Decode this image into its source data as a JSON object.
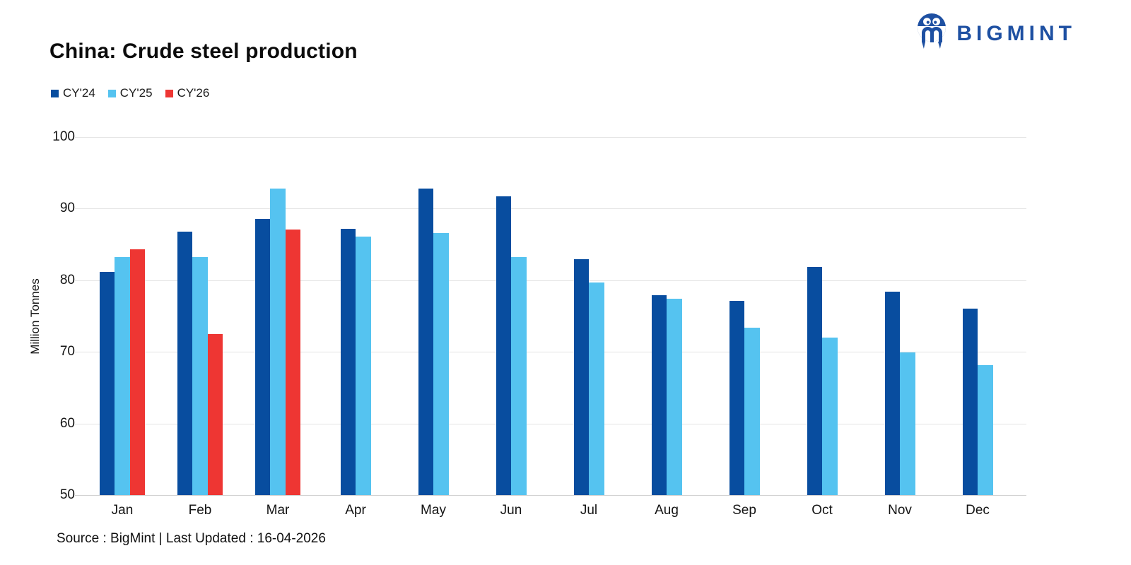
{
  "header": {
    "title": "China: Crude steel production",
    "logo_text": "BIGMINT",
    "logo_icon": "bigmint-mark-icon",
    "logo_color": "#1e50a2"
  },
  "chart_data": {
    "type": "bar",
    "title": "China: Crude steel production",
    "categories": [
      "Jan",
      "Feb",
      "Mar",
      "Apr",
      "May",
      "Jun",
      "Jul",
      "Aug",
      "Sep",
      "Oct",
      "Nov",
      "Dec"
    ],
    "series": [
      {
        "name": "CY'24",
        "color": "#084d9f",
        "values": [
          81.2,
          86.8,
          88.6,
          87.2,
          92.8,
          91.7,
          82.9,
          77.9,
          77.1,
          81.9,
          78.4,
          76.0
        ]
      },
      {
        "name": "CY'25",
        "color": "#55c3f0",
        "values": [
          83.2,
          83.2,
          92.8,
          86.1,
          86.6,
          83.2,
          79.7,
          77.4,
          73.4,
          72.0,
          69.9,
          68.1
        ]
      },
      {
        "name": "CY'26",
        "color": "#ee3633",
        "values": [
          84.3,
          72.5,
          87.1,
          null,
          null,
          null,
          null,
          null,
          null,
          null,
          null,
          null
        ]
      }
    ],
    "xlabel": "",
    "ylabel": "Million Tonnes",
    "ylim": [
      50,
      100
    ],
    "yticks": [
      100,
      90,
      80,
      70,
      60,
      50
    ],
    "grid": true,
    "legend_position": "top-left"
  },
  "footer": {
    "text": "Source : BigMint | Last Updated : 16-04-2026"
  }
}
